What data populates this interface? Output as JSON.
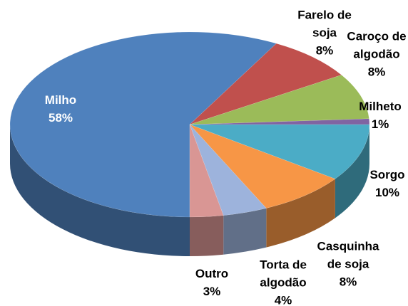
{
  "chart_data": {
    "type": "pie",
    "categories": [
      "Milho",
      "Farelo de soja",
      "Caroço de algodão",
      "Milheto",
      "Sorgo",
      "Casquinha de soja",
      "Torta de algodão",
      "Outro"
    ],
    "values": [
      58,
      8,
      8,
      1,
      10,
      8,
      4,
      3
    ],
    "value_labels": [
      "58%",
      "8%",
      "8%",
      "1%",
      "10%",
      "8%",
      "4%",
      "3%"
    ],
    "colors": [
      "#4f81bd",
      "#c0504d",
      "#9bbb59",
      "#8064a2",
      "#4bacc6",
      "#f79646",
      "#9db3dc",
      "#d99694"
    ]
  }
}
